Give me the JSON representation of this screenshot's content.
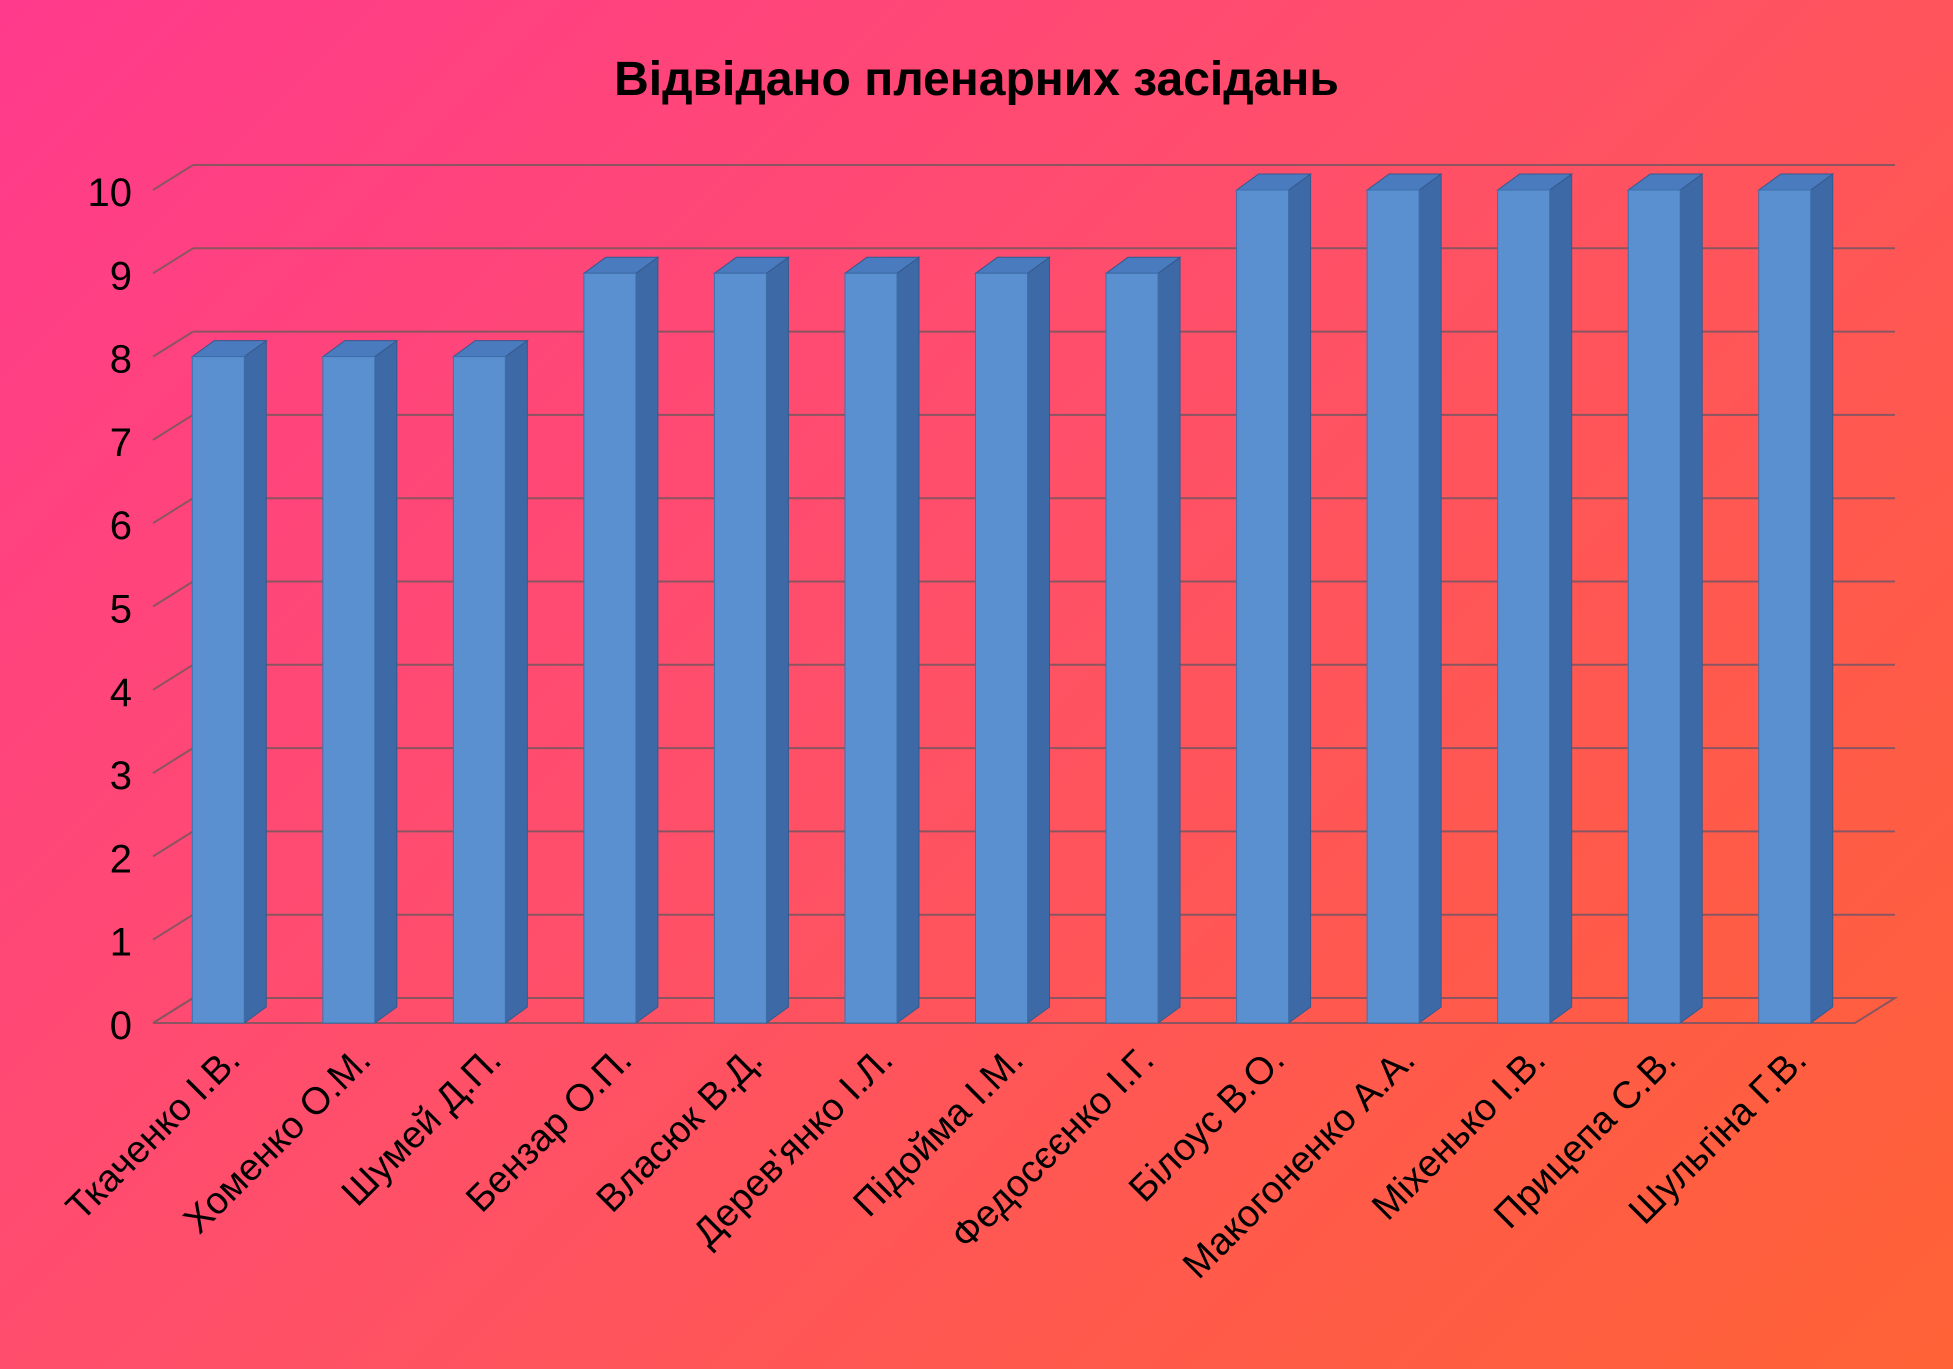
{
  "chart_data": {
    "type": "bar",
    "title": "Відвідано пленарних засідань",
    "xlabel": "",
    "ylabel": "",
    "ylim": [
      0,
      10
    ],
    "yticks": [
      "0",
      "1",
      "2",
      "3",
      "4",
      "5",
      "6",
      "7",
      "8",
      "9",
      "10"
    ],
    "grid": true,
    "style": "3d-column",
    "bar_color": "#5a8fd0",
    "bar_side_color": "#3d6aa6",
    "bar_top_color": "#4a7bbf",
    "categories": [
      "Ткаченко І.В.",
      "Хоменко О.М.",
      "Шумей Д.П.",
      "Бензар О.П.",
      "Власюк В.Д.",
      "Дерев'янко І.Л.",
      "Підойма І.М.",
      "Федосєєнко І.Г.",
      "Білоус В.О.",
      "Макогоненко А.А.",
      "Міхенько І.В.",
      "Прицепа С.В.",
      "Шульгіна Г.В."
    ],
    "values": [
      8,
      8,
      8,
      9,
      9,
      9,
      9,
      9,
      10,
      10,
      10,
      10,
      10
    ]
  }
}
